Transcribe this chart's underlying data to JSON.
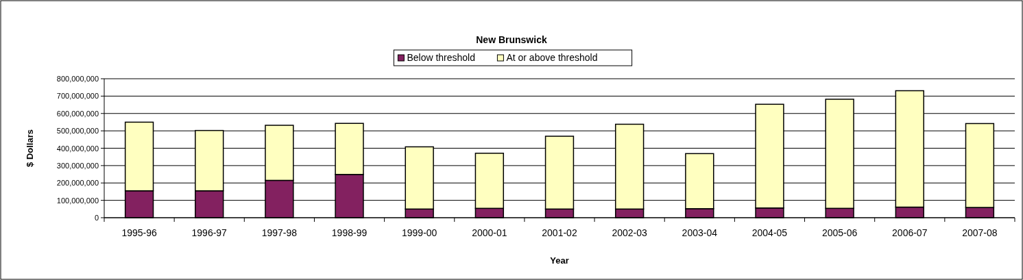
{
  "chart_data": {
    "type": "bar",
    "title": "New Brunswick",
    "xlabel": "Year",
    "ylabel": "$ Dollars",
    "categories": [
      "1995-96",
      "1996-97",
      "1997-98",
      "1998-99",
      "1999-00",
      "2000-01",
      "2001-02",
      "2002-03",
      "2003-04",
      "2004-05",
      "2005-06",
      "2006-07",
      "2007-08"
    ],
    "stacked": true,
    "series": [
      {
        "name": "Below threshold",
        "color": "#832160",
        "values": [
          155000000,
          155000000,
          215000000,
          249000000,
          50000000,
          54000000,
          50000000,
          50000000,
          52000000,
          56000000,
          54000000,
          61000000,
          59000000
        ]
      },
      {
        "name": "At or above threshold",
        "color": "#ffffc0",
        "values": [
          395000000,
          347000000,
          317000000,
          294000000,
          358000000,
          317000000,
          419000000,
          488000000,
          317000000,
          597000000,
          628000000,
          670000000,
          483000000
        ]
      }
    ],
    "ylim": [
      0,
      800000000
    ],
    "yticks": [
      {
        "value": 0,
        "label": "0"
      },
      {
        "value": 100000000,
        "label": "100,000,000"
      },
      {
        "value": 200000000,
        "label": "200,000,000"
      },
      {
        "value": 300000000,
        "label": "300,000,000"
      },
      {
        "value": 400000000,
        "label": "400,000,000"
      },
      {
        "value": 500000000,
        "label": "500,000,000"
      },
      {
        "value": 600000000,
        "label": "600,000,000"
      },
      {
        "value": 700000000,
        "label": "700,000,000"
      },
      {
        "value": 800000000,
        "label": "800,000,000"
      }
    ],
    "grid": "y",
    "legend": "top"
  }
}
